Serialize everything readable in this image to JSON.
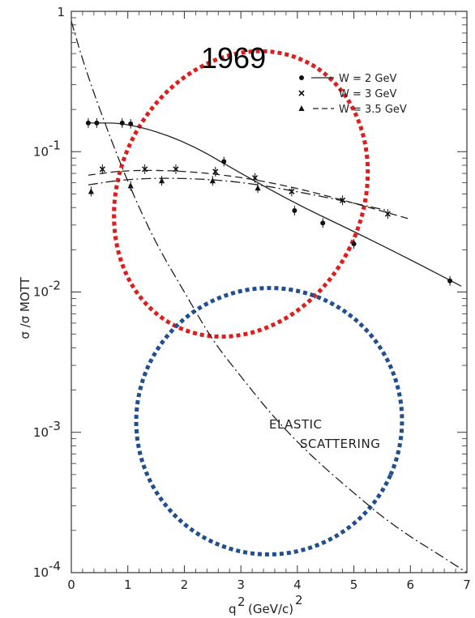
{
  "chart_data": {
    "type": "line",
    "title": "1969",
    "xlabel": "q² (GeV/c)²",
    "xlabel_base": "q",
    "xlabel_unit": "(GeV/c)",
    "ylabel": "σ /σ MOTT",
    "xlim": [
      0,
      7
    ],
    "ylim": [
      0.0001,
      1
    ],
    "yscale": "log",
    "x_ticks": [
      "0",
      "1",
      "2",
      "3",
      "4",
      "5",
      "6",
      "7"
    ],
    "y_ticks": [
      {
        "base": "10",
        "exp": "-4"
      },
      {
        "base": "10",
        "exp": "-3"
      },
      {
        "base": "10",
        "exp": "-2"
      },
      {
        "base": "10",
        "exp": "-1"
      },
      {
        "base": "",
        "exp": "",
        "label": "1"
      }
    ],
    "legend_position": "top-right",
    "series": [
      {
        "name": "W = 2 GeV",
        "marker": "circle",
        "line": "solid",
        "points": [
          {
            "x": 0.3,
            "y": 0.16
          },
          {
            "x": 0.45,
            "y": 0.16
          },
          {
            "x": 0.9,
            "y": 0.16
          },
          {
            "x": 1.05,
            "y": 0.158
          },
          {
            "x": 2.7,
            "y": 0.085
          },
          {
            "x": 3.95,
            "y": 0.038
          },
          {
            "x": 4.45,
            "y": 0.031
          },
          {
            "x": 5.0,
            "y": 0.022
          },
          {
            "x": 6.7,
            "y": 0.012
          }
        ],
        "curve": [
          {
            "x": 0.3,
            "y": 0.16
          },
          {
            "x": 1.0,
            "y": 0.16
          },
          {
            "x": 2.0,
            "y": 0.12
          },
          {
            "x": 3.0,
            "y": 0.07
          },
          {
            "x": 4.0,
            "y": 0.042
          },
          {
            "x": 5.0,
            "y": 0.027
          },
          {
            "x": 6.0,
            "y": 0.017
          },
          {
            "x": 6.9,
            "y": 0.011
          }
        ]
      },
      {
        "name": "W = 3 GeV",
        "marker": "x",
        "line": "dashed",
        "points": [
          {
            "x": 0.55,
            "y": 0.075
          },
          {
            "x": 1.3,
            "y": 0.075
          },
          {
            "x": 1.85,
            "y": 0.075
          },
          {
            "x": 2.55,
            "y": 0.072
          },
          {
            "x": 3.25,
            "y": 0.065
          },
          {
            "x": 3.9,
            "y": 0.052
          },
          {
            "x": 4.8,
            "y": 0.045
          },
          {
            "x": 5.6,
            "y": 0.036
          }
        ],
        "curve": [
          {
            "x": 0.3,
            "y": 0.068
          },
          {
            "x": 1.0,
            "y": 0.074
          },
          {
            "x": 2.0,
            "y": 0.073
          },
          {
            "x": 3.0,
            "y": 0.066
          },
          {
            "x": 4.0,
            "y": 0.055
          },
          {
            "x": 5.0,
            "y": 0.043
          },
          {
            "x": 6.0,
            "y": 0.033
          }
        ]
      },
      {
        "name": "W = 3.5 GeV",
        "marker": "triangle",
        "line": "dash-dot",
        "points": [
          {
            "x": 0.35,
            "y": 0.052
          },
          {
            "x": 1.05,
            "y": 0.057
          },
          {
            "x": 1.6,
            "y": 0.062
          },
          {
            "x": 2.5,
            "y": 0.062
          },
          {
            "x": 3.3,
            "y": 0.055
          }
        ],
        "curve": [
          {
            "x": 0.3,
            "y": 0.058
          },
          {
            "x": 1.0,
            "y": 0.064
          },
          {
            "x": 2.0,
            "y": 0.065
          },
          {
            "x": 3.0,
            "y": 0.061
          },
          {
            "x": 4.0,
            "y": 0.052
          },
          {
            "x": 5.0,
            "y": 0.043
          },
          {
            "x": 5.6,
            "y": 0.038
          }
        ]
      },
      {
        "name": "ELASTIC SCATTERING",
        "marker": "none",
        "line": "dash-dot",
        "curve": [
          {
            "x": 0.0,
            "y": 0.85
          },
          {
            "x": 0.2,
            "y": 0.45
          },
          {
            "x": 0.5,
            "y": 0.2
          },
          {
            "x": 1.0,
            "y": 0.06
          },
          {
            "x": 1.5,
            "y": 0.022
          },
          {
            "x": 2.0,
            "y": 0.01
          },
          {
            "x": 2.5,
            "y": 0.0045
          },
          {
            "x": 3.0,
            "y": 0.0025
          },
          {
            "x": 3.5,
            "y": 0.0014
          },
          {
            "x": 4.0,
            "y": 0.00085
          },
          {
            "x": 4.5,
            "y": 0.00055
          },
          {
            "x": 5.0,
            "y": 0.00037
          },
          {
            "x": 5.5,
            "y": 0.00025
          },
          {
            "x": 6.0,
            "y": 0.00018
          },
          {
            "x": 6.5,
            "y": 0.000135
          },
          {
            "x": 7.0,
            "y": 0.0001
          }
        ]
      }
    ],
    "annotations": [
      {
        "text": "ELASTIC",
        "x": 3.4,
        "y": 0.0012
      },
      {
        "text": "SCATTERING",
        "x": 3.4,
        "y": 0.0007
      }
    ],
    "highlight_ellipses": [
      {
        "color": "#e01c1c",
        "cx": 3.0,
        "cy": 0.05,
        "rx": 2.15,
        "ry_decades": 1.05,
        "angle": 26
      },
      {
        "color": "#1f4f91",
        "cx": 3.5,
        "cy": 0.0012,
        "rx": 2.35,
        "ry_decades": 0.95,
        "angle": 24
      }
    ]
  }
}
